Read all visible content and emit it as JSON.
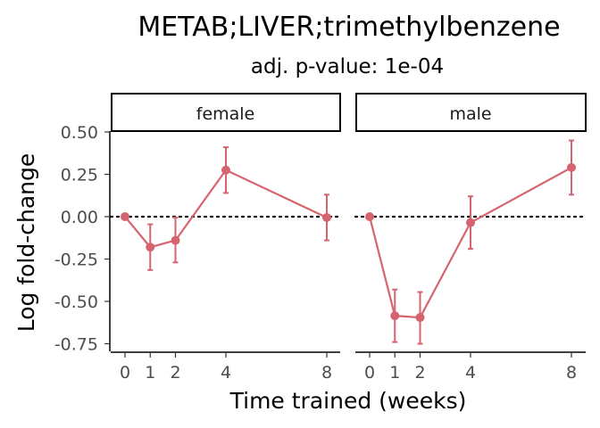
{
  "title": "METAB;LIVER;trimethylbenzene",
  "subtitle": "adj. p-value: 1e-04",
  "chart_data": {
    "type": "line",
    "xlabel": "Time trained (weeks)",
    "ylabel": "Log fold-change",
    "x_ticks": [
      0,
      1,
      2,
      4,
      8
    ],
    "x_tick_labels": [
      "0",
      "1",
      "2",
      "4",
      "8"
    ],
    "y_ticks": [
      0.5,
      0.25,
      0.0,
      -0.25,
      -0.5,
      -0.75
    ],
    "y_tick_labels": [
      "0.50",
      "0.25",
      "0.00",
      "-0.25",
      "-0.50",
      "-0.75"
    ],
    "ylim": [
      -0.8,
      0.58
    ],
    "reference_line": 0,
    "series_color": "#d6646f",
    "panels": [
      {
        "label": "female",
        "x": [
          0,
          1,
          2,
          4,
          8
        ],
        "y": [
          0.0,
          -0.18,
          -0.14,
          0.275,
          -0.005
        ],
        "err_low": [
          0.0,
          -0.315,
          -0.27,
          0.14,
          -0.14
        ],
        "err_high": [
          0.0,
          -0.045,
          -0.005,
          0.41,
          0.13
        ]
      },
      {
        "label": "male",
        "x": [
          0,
          1,
          2,
          4,
          8
        ],
        "y": [
          0.0,
          -0.585,
          -0.595,
          -0.035,
          0.29
        ],
        "err_low": [
          0.0,
          -0.74,
          -0.75,
          -0.19,
          0.13
        ],
        "err_high": [
          0.0,
          -0.43,
          -0.445,
          0.12,
          0.45
        ]
      }
    ]
  }
}
